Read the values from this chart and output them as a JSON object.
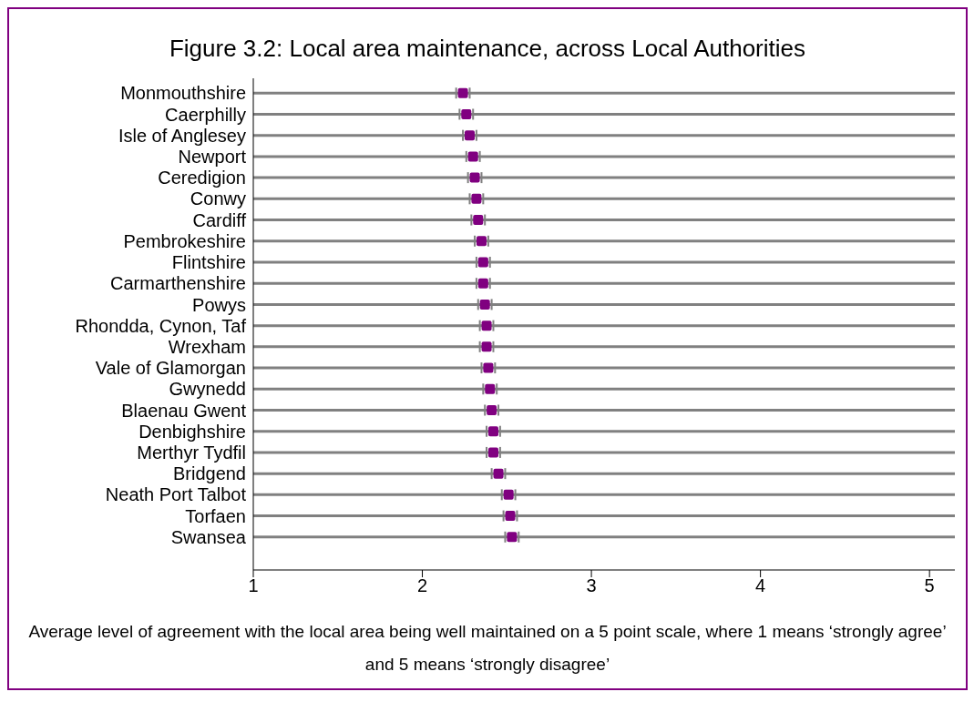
{
  "chart_data": {
    "type": "scatter",
    "title": "Figure 3.2: Local area maintenance, across Local Authorities",
    "xlabel": "Average level of agreement with the local area being well maintained on a 5 point scale, where 1 means ‘strongly agree’ and 5 means ‘strongly disagree’",
    "categories": [
      "Monmouthshire",
      "Caerphilly",
      "Isle of Anglesey",
      "Newport",
      "Ceredigion",
      "Conwy",
      "Cardiff",
      "Pembrokeshire",
      "Flintshire",
      "Carmarthenshire",
      "Powys",
      "Rhondda, Cynon, Taf",
      "Wrexham",
      "Vale of Glamorgan",
      "Gwynedd",
      "Blaenau Gwent",
      "Denbighshire",
      "Merthyr Tydfil",
      "Bridgend",
      "Neath Port Talbot",
      "Torfaen",
      "Swansea"
    ],
    "orientation": "horizontal",
    "series": [
      {
        "color": "#800080",
        "values": [
          2.24,
          2.26,
          2.28,
          2.3,
          2.31,
          2.32,
          2.33,
          2.35,
          2.36,
          2.36,
          2.37,
          2.38,
          2.38,
          2.39,
          2.4,
          2.41,
          2.42,
          2.42,
          2.45,
          2.51,
          2.52,
          2.53
        ],
        "errors": [
          0.04,
          0.04,
          0.04,
          0.04,
          0.04,
          0.04,
          0.04,
          0.04,
          0.04,
          0.04,
          0.04,
          0.04,
          0.04,
          0.04,
          0.04,
          0.04,
          0.04,
          0.04,
          0.04,
          0.04,
          0.04,
          0.04
        ]
      }
    ],
    "xlim": [
      1,
      5.15
    ],
    "xticks": [
      1,
      2,
      3,
      4,
      5
    ],
    "grid": "y",
    "marker": "square"
  }
}
